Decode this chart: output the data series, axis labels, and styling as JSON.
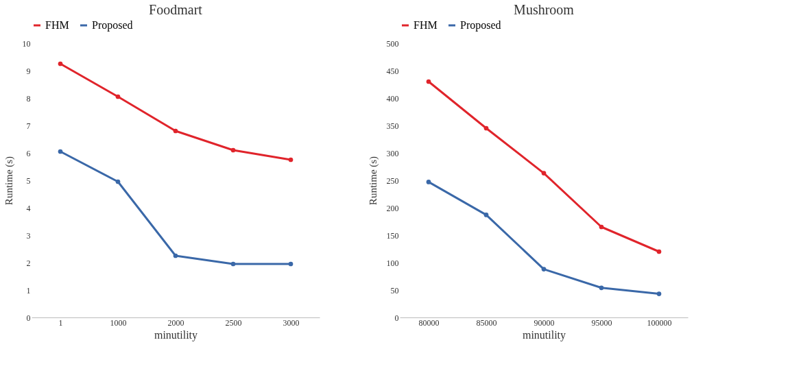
{
  "chart_data": [
    {
      "type": "line",
      "title": "Foodmart",
      "xlabel": "minutility",
      "ylabel": "Runtime (s)",
      "categories": [
        "1",
        "1000",
        "2000",
        "2500",
        "3000"
      ],
      "ylim": [
        0,
        10
      ],
      "yticks": [
        0,
        1,
        2,
        3,
        4,
        5,
        6,
        7,
        8,
        9,
        10
      ],
      "grid": false,
      "legend": "top",
      "marker": "circle",
      "series": [
        {
          "name": "FHM",
          "color": "#e0242b",
          "values": [
            9.25,
            8.05,
            6.8,
            6.1,
            5.75
          ]
        },
        {
          "name": "Proposed",
          "color": "#3a68a8",
          "values": [
            6.05,
            4.95,
            2.25,
            1.95,
            1.95
          ]
        }
      ]
    },
    {
      "type": "line",
      "title": "Mushroom",
      "xlabel": "minutility",
      "ylabel": "Runtime (s)",
      "categories": [
        "80000",
        "85000",
        "90000",
        "95000",
        "100000"
      ],
      "ylim": [
        0,
        500
      ],
      "yticks": [
        0,
        50,
        100,
        150,
        200,
        250,
        300,
        350,
        400,
        450,
        500
      ],
      "grid": false,
      "legend": "top",
      "marker": "circle",
      "series": [
        {
          "name": "FHM",
          "color": "#e0242b",
          "values": [
            430,
            345,
            263,
            165,
            120
          ]
        },
        {
          "name": "Proposed",
          "color": "#3a68a8",
          "values": [
            247,
            187,
            88,
            54,
            43
          ]
        }
      ]
    }
  ]
}
